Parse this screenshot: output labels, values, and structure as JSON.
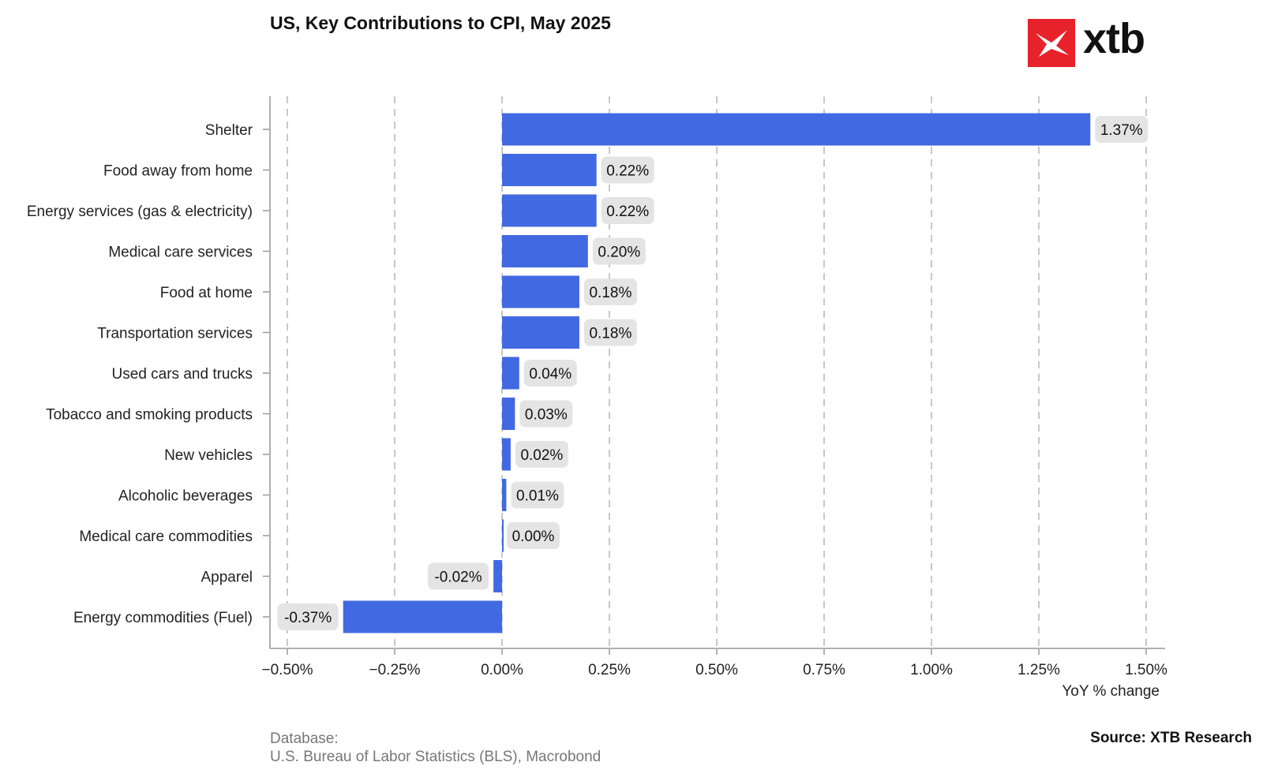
{
  "chart_data": {
    "type": "bar",
    "orientation": "horizontal",
    "title": "US, Key Contributions to CPI, May 2025",
    "xlabel": "YoY % change",
    "ylabel": "",
    "xlim": [
      -0.5,
      1.5
    ],
    "x_ticks": [
      -0.5,
      -0.25,
      0.0,
      0.25,
      0.5,
      0.75,
      1.0,
      1.25,
      1.5
    ],
    "x_tick_labels": [
      "−0.50%",
      "−0.25%",
      "0.00%",
      "0.25%",
      "0.50%",
      "0.75%",
      "1.00%",
      "1.25%",
      "1.50%"
    ],
    "grid": "vertical dashed",
    "categories": [
      "Shelter",
      "Food away from home",
      "Energy services (gas & electricity)",
      "Medical care services",
      "Food at home",
      "Transportation services",
      "Used cars and trucks",
      "Tobacco and smoking products",
      "New vehicles",
      "Alcoholic beverages",
      "Medical care commodities",
      "Apparel",
      "Energy commodities (Fuel)"
    ],
    "values": [
      1.37,
      0.22,
      0.22,
      0.2,
      0.18,
      0.18,
      0.04,
      0.03,
      0.02,
      0.01,
      0.0,
      -0.02,
      -0.37
    ],
    "data_labels": [
      "1.37%",
      "0.22%",
      "0.22%",
      "0.20%",
      "0.18%",
      "0.18%",
      "0.04%",
      "0.03%",
      "0.02%",
      "0.01%",
      "0.00%",
      "-0.02%",
      "-0.37%"
    ],
    "bar_color": "#4169e1",
    "label_bg_color": "#e4e4e4"
  },
  "logo": {
    "text": "xtb",
    "color": "#e8222b"
  },
  "footer": {
    "database_label": "Database:",
    "database_value": "U.S. Bureau of Labor Statistics (BLS), Macrobond",
    "source": "Source: XTB Research"
  }
}
